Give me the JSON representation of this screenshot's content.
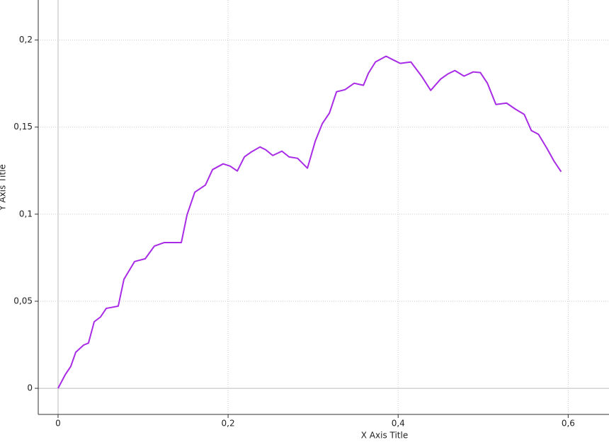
{
  "chart_data": {
    "type": "line",
    "x_label": "X Axis Title",
    "y_label": "Y Axis Title",
    "xlim": [
      -0.0233,
      0.648
    ],
    "ylim": [
      -0.015,
      0.223
    ],
    "xticks": [
      0,
      {
        "value": 0.2,
        "label": "0,2"
      },
      {
        "value": 0.4,
        "label": "0,4"
      },
      {
        "value": 0.6,
        "label": "0,6"
      }
    ],
    "yticks": [
      0,
      {
        "value": 0.05,
        "label": "0,05"
      },
      {
        "value": 0.1,
        "label": "0,1"
      },
      {
        "value": 0.15,
        "label": "0,15"
      },
      {
        "value": 0.2,
        "label": "0,2"
      }
    ],
    "grid": true,
    "series": [
      {
        "color": "#a82be6",
        "x": [
          0,
          0.0083,
          0.015,
          0.0208,
          0.03,
          0.0358,
          0.0425,
          0.05,
          0.0567,
          0.0708,
          0.0775,
          0.09,
          0.1025,
          0.1133,
          0.125,
          0.1358,
          0.145,
          0.1517,
          0.1608,
          0.1733,
          0.1817,
          0.1942,
          0.2025,
          0.2108,
          0.2192,
          0.2275,
          0.2375,
          0.2442,
          0.2525,
          0.2633,
          0.2717,
          0.2817,
          0.2933,
          0.3025,
          0.3108,
          0.3192,
          0.3275,
          0.3375,
          0.3483,
          0.3592,
          0.365,
          0.3733,
          0.3858,
          0.3942,
          0.4025,
          0.415,
          0.4275,
          0.4383,
          0.45,
          0.4583,
          0.4667,
          0.4775,
          0.4883,
          0.4967,
          0.505,
          0.515,
          0.5275,
          0.5383,
          0.5483,
          0.5567,
          0.565,
          0.575,
          0.5833,
          0.5917
        ],
        "values": [
          0,
          0.0077,
          0.0126,
          0.0207,
          0.0248,
          0.026,
          0.0382,
          0.041,
          0.0459,
          0.0472,
          0.0626,
          0.0728,
          0.0744,
          0.0817,
          0.0837,
          0.0837,
          0.0837,
          0.0996,
          0.1126,
          0.1167,
          0.1256,
          0.1289,
          0.1276,
          0.1248,
          0.1329,
          0.1358,
          0.1386,
          0.137,
          0.1337,
          0.1362,
          0.1329,
          0.1321,
          0.1264,
          0.1419,
          0.152,
          0.1581,
          0.1703,
          0.1715,
          0.1752,
          0.174,
          0.1809,
          0.1874,
          0.1907,
          0.1886,
          0.1866,
          0.1874,
          0.1793,
          0.1711,
          0.1776,
          0.1805,
          0.1825,
          0.1793,
          0.1817,
          0.1813,
          0.1752,
          0.163,
          0.1638,
          0.1602,
          0.1573,
          0.148,
          0.1459,
          0.1378,
          0.1305,
          0.1244
        ]
      }
    ]
  }
}
